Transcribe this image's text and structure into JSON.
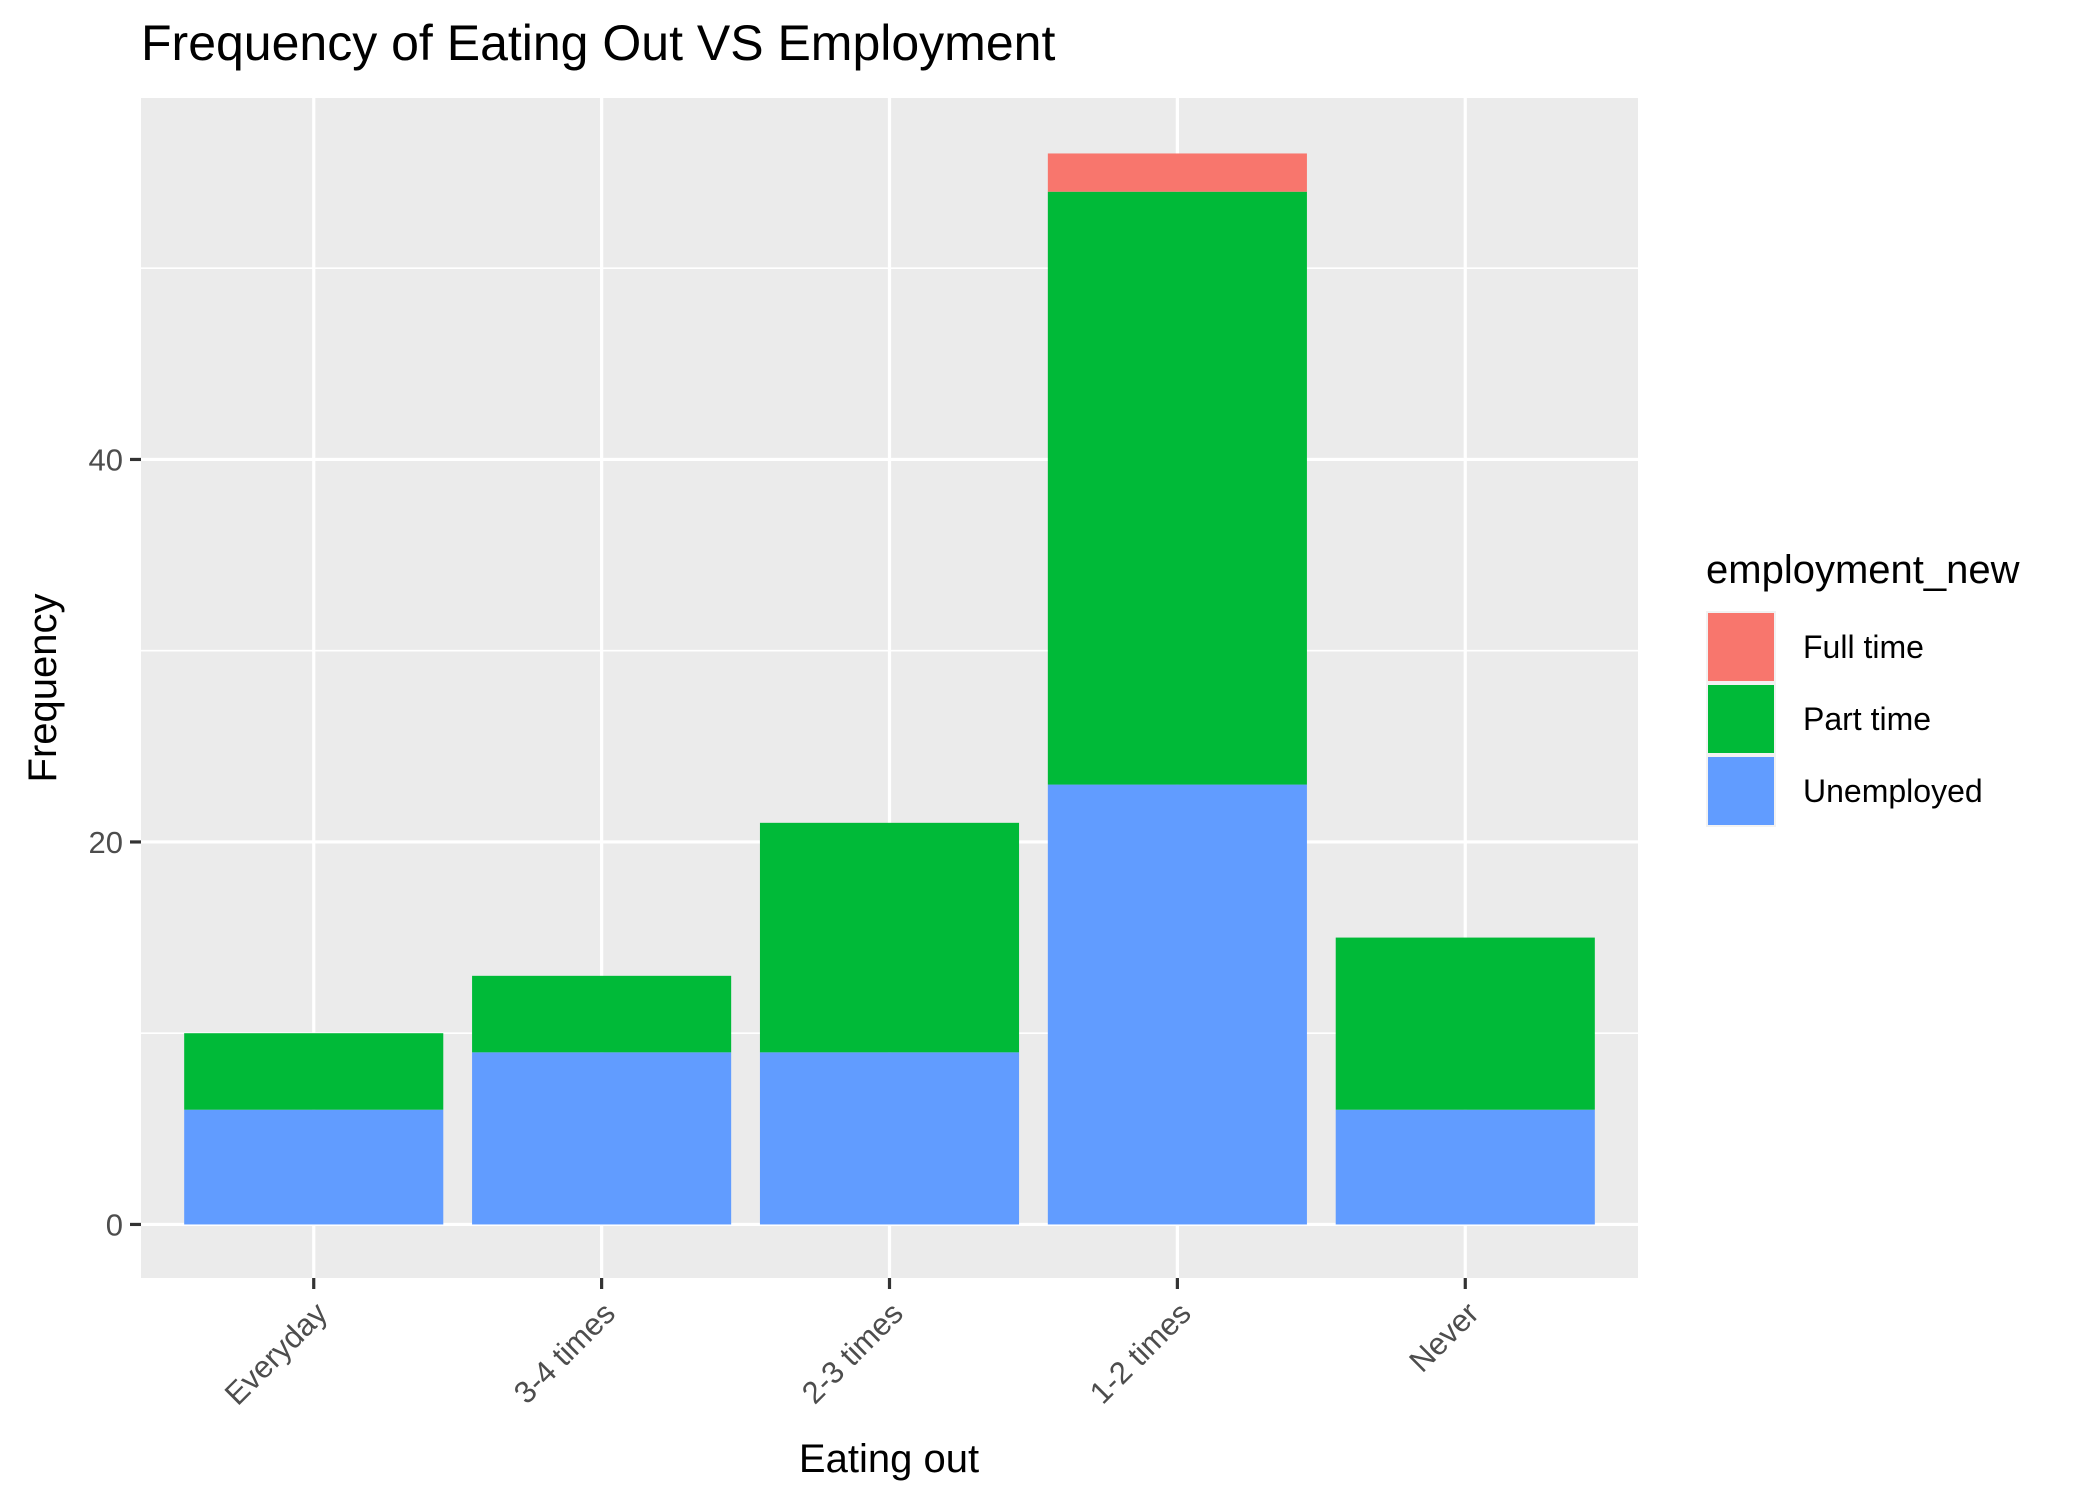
{
  "chart_data": {
    "type": "bar",
    "stacked": true,
    "title": "Frequency of Eating Out VS Employment",
    "xlabel": "Eating out",
    "ylabel": "Frequency",
    "categories": [
      "Everyday",
      "3-4 times",
      "2-3 times",
      "1-2 times",
      "Never"
    ],
    "series": [
      {
        "name": "Full time",
        "color": "#F8766D",
        "values": [
          0,
          0,
          0,
          2,
          0
        ]
      },
      {
        "name": "Part time",
        "color": "#00BA38",
        "values": [
          4,
          4,
          12,
          31,
          9
        ]
      },
      {
        "name": "Unemployed",
        "color": "#619CFF",
        "values": [
          6,
          9,
          9,
          23,
          6
        ]
      }
    ],
    "stack_order_bottom_to_top": [
      "Unemployed",
      "Part time",
      "Full time"
    ],
    "ylim": [
      -2.8,
      58.9
    ],
    "yticks": [
      0,
      20,
      40
    ],
    "grid": true,
    "panel_background": "#EBEBEB",
    "legend": {
      "title": "employment_new",
      "position": "right"
    }
  }
}
